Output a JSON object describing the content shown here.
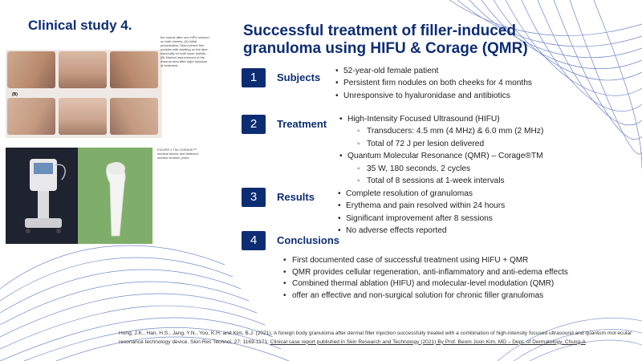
{
  "study_title": "Clinical study 4.",
  "main_title": "Successful  treatment  of  filler-induced granuloma using HIFU & Corage (QMR)",
  "figure1": {
    "label": "(B)",
    "caption": "the nodule after one HIFU session on both cheeks. (A) Initial presentation. Skin-colored firm nodules with swelling on the face, especially on both lower eyelids. (B) Marked improvement of the lesional area after eight sessions of treatment."
  },
  "figure2": {
    "caption": "FIGURE 2 The CORAGE™ medical device and flattened-surface ceramic probe"
  },
  "sections": [
    {
      "number": "1",
      "label": "Subjects",
      "bullets": [
        {
          "text": "52-year-old female patient"
        },
        {
          "text": "Persistent firm nodules on both cheeks for 4 months"
        },
        {
          "text": "Unresponsive to hyaluronidase and antibiotics"
        }
      ]
    },
    {
      "number": "2",
      "label": "Treatment",
      "bullets": [
        {
          "text": "High-Intensity Focused Ultrasound (HIFU)"
        },
        {
          "text": "Transducers: 4.5 mm (4 MHz) & 6.0 mm (2 MHz)"
        },
        {
          "text": "Total of 72 J per lesion delivered"
        },
        {
          "text": "Quantum Molecular Resonance (QMR) – Corage®TM"
        },
        {
          "text": "35 W, 180 seconds, 2 cycles"
        },
        {
          "text": "Total of 8 sessions at 1-week intervals"
        }
      ]
    },
    {
      "number": "3",
      "label": "Results",
      "bullets": [
        {
          "text": "Complete resolution of granulomas"
        },
        {
          "text": "Erythema and pain resolved within 24 hours"
        },
        {
          "text": "Significant improvement after 8 sessions"
        },
        {
          "text": "No adverse effects reported"
        }
      ]
    },
    {
      "number": "4",
      "label": "Conclusions",
      "bullets": [
        {
          "text": "First documented case of successful treatment using HIFU + QMR"
        },
        {
          "text": "QMR provides cellular regeneration, anti-inflammatory and anti-edema effects"
        },
        {
          "text": "Combined thermal ablation (HIFU) and molecular-level modulation (QMR)"
        },
        {
          "text": " offer an effective and non-surgical solution for chronic filler granulomas"
        }
      ]
    }
  ],
  "reference": {
    "citation": "Hong, J.K., Han, H.S., Jang, Y.N., Yoo, K.H. and Kim, B.J. (2021), A foreign body granuloma after dermal filler injection successfully treated with a combination of high-intensity focused ultrasound and quantum mol ecular resonance technology device. Skin Res Technol, 27: 1169-1171. ",
    "link_text": "Clinical case report published in Skin Research and Technology (2021) By Prof. Beom Joon Kim, MD – Dept. of Dermatology, Chung-A"
  },
  "colors": {
    "primary": "#0d2d73",
    "line_decoration": "#3b5bb5"
  }
}
